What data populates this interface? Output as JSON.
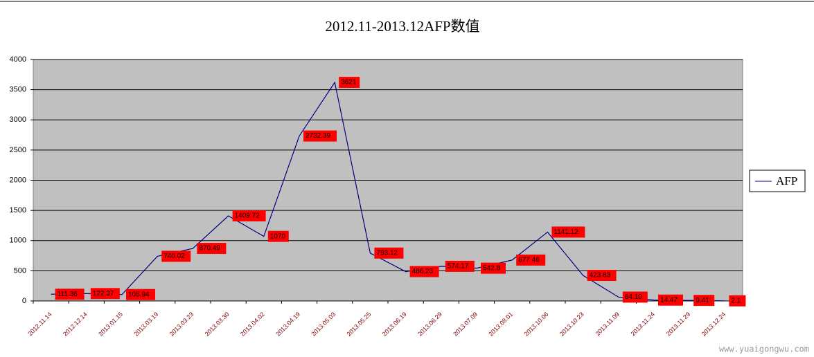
{
  "chart_data": {
    "type": "line",
    "title": "2012.11-2013.12AFP数值",
    "categories": [
      "2012.11.14",
      "2012.12.14",
      "2013.01.15",
      "2013.03.19",
      "2013.03.23",
      "2013.03.30",
      "2013.04.02",
      "2013.04.19",
      "2013.05.03",
      "2013.05.25",
      "2013.06.19",
      "2013.06.29",
      "2013.07.09",
      "2013.08.01",
      "2013.10.06",
      "2013.10.23",
      "2013.11.09",
      "2013.11.24",
      "2013.11.29",
      "2013.12.24"
    ],
    "series": [
      {
        "name": "AFP",
        "color": "#000080",
        "values": [
          111.36,
          122.37,
          105.94,
          740.02,
          870.49,
          1409.72,
          1070,
          2732.39,
          3621,
          793.12,
          486.23,
          574.17,
          542.8,
          677.46,
          1141.12,
          423.83,
          64.1,
          14.47,
          9.41,
          2.1
        ],
        "value_labels": [
          "111.36",
          "122.37",
          "105.94",
          "740.02",
          "870.49",
          "1409.72",
          "1070",
          "2732.39",
          "3621",
          "793.12",
          "486.23",
          "574.17",
          "542.8",
          "677.46",
          "1141.12",
          "423.83",
          "64.10",
          "14.47",
          "9.41",
          "2.1"
        ]
      }
    ],
    "ylim": [
      0,
      4000
    ],
    "yticks": [
      0,
      500,
      1000,
      1500,
      2000,
      2500,
      3000,
      3500,
      4000
    ],
    "grid": true,
    "legend": "right",
    "watermark": "www.yuaigongwu.com"
  }
}
